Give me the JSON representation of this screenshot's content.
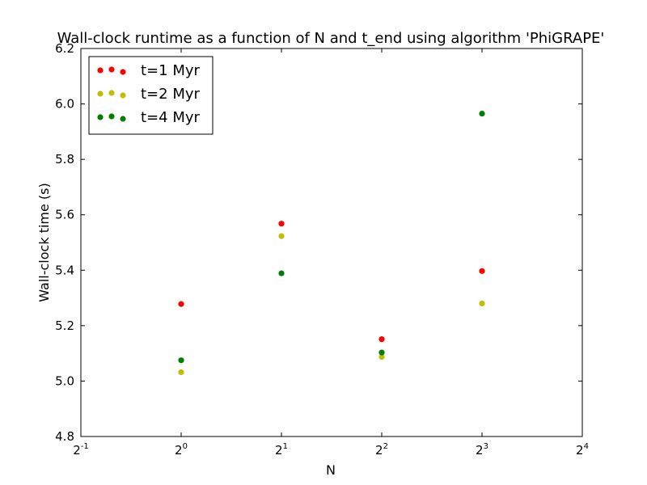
{
  "chart_data": {
    "type": "scatter",
    "title": "Wall-clock runtime as a function of N and t_end using algorithm 'PhiGRAPE'",
    "xlabel": "N",
    "ylabel": "Wall-clock time (s)",
    "xscale": "log2",
    "xlim_exponent": [
      -1,
      4
    ],
    "xticks": [
      {
        "base": "2",
        "exp": "-1"
      },
      {
        "base": "2",
        "exp": "0"
      },
      {
        "base": "2",
        "exp": "1"
      },
      {
        "base": "2",
        "exp": "2"
      },
      {
        "base": "2",
        "exp": "3"
      },
      {
        "base": "2",
        "exp": "4"
      }
    ],
    "ylim": [
      4.8,
      6.2
    ],
    "yticks": [
      "4.8",
      "5.0",
      "5.2",
      "5.4",
      "5.6",
      "5.8",
      "6.0",
      "6.2"
    ],
    "x": [
      1,
      2,
      4,
      8
    ],
    "series": [
      {
        "name": "t=1 Myr",
        "color": "#ff0000",
        "values": [
          5.278,
          5.568,
          5.151,
          5.397
        ]
      },
      {
        "name": "t=2 Myr",
        "color": "#bfbf00",
        "values": [
          5.032,
          5.523,
          5.087,
          5.28
        ]
      },
      {
        "name": "t=4 Myr",
        "color": "#008000",
        "values": [
          5.075,
          5.389,
          5.103,
          5.965
        ]
      }
    ],
    "legend_position": "top-left",
    "grid": false
  }
}
